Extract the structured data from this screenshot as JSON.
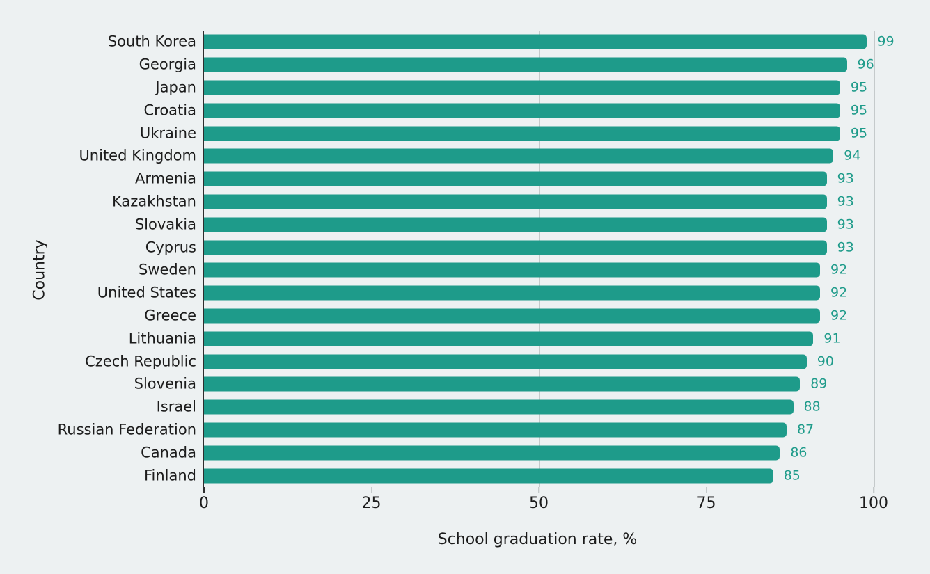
{
  "chart_data": {
    "type": "bar",
    "orientation": "horizontal",
    "title": "",
    "xlabel": "School graduation rate, %",
    "ylabel": "Country",
    "xlim": [
      0,
      100
    ],
    "xticks": [
      0,
      25,
      50,
      75,
      100
    ],
    "grid": "vertical gridlines at x ticks, drawn behind bars",
    "legend": "none",
    "categories": [
      "South Korea",
      "Georgia",
      "Japan",
      "Croatia",
      "Ukraine",
      "United Kingdom",
      "Armenia",
      "Kazakhstan",
      "Slovakia",
      "Cyprus",
      "Sweden",
      "United States",
      "Greece",
      "Lithuania",
      "Czech Republic",
      "Slovenia",
      "Israel",
      "Russian Federation",
      "Canada",
      "Finland"
    ],
    "values": [
      99,
      96,
      95,
      95,
      95,
      94,
      93,
      93,
      93,
      93,
      92,
      92,
      92,
      91,
      90,
      89,
      88,
      87,
      86,
      85
    ],
    "value_labels_shown": true,
    "colors": {
      "bar": "#1E9B8A",
      "value_label": "#1E9B8A",
      "background": "#EDF1F2",
      "gridline": "#C5CACB",
      "axis_spine": "#2E2E2E",
      "text": "#1C1C1C"
    }
  }
}
